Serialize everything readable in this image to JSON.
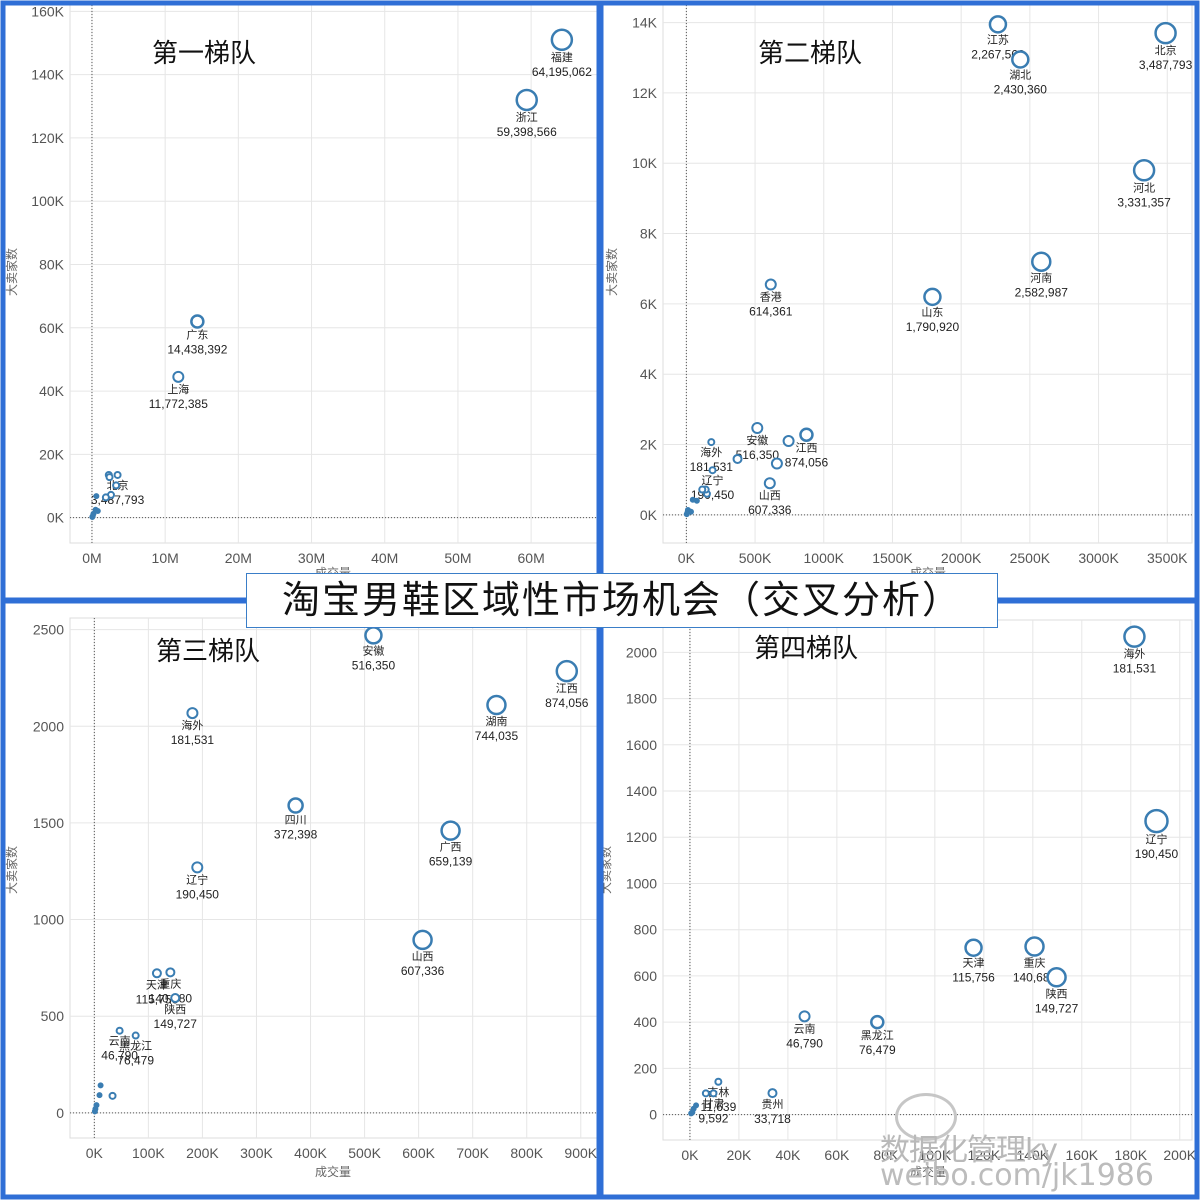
{
  "page_title": "淘宝男鞋区域性市场机会（交叉分析）",
  "watermark": {
    "line1": "数据化管理ky",
    "line2": "weibo.com/jk1986",
    "icon": "weibo-icon"
  },
  "colors": {
    "frame": "#2f6fd6",
    "point": "#3a7db2",
    "grid": "#e6e6e6",
    "axis_text": "#555555"
  },
  "chart_data": [
    {
      "type": "scatter",
      "title": "第一梯队",
      "xlabel": "成交量",
      "ylabel": "大卖家数",
      "x_unit": "M",
      "y_unit": "K",
      "xlim": [
        -3,
        69
      ],
      "ylim": [
        -8,
        162
      ],
      "x_ticks": [
        0,
        10,
        20,
        30,
        40,
        50,
        60
      ],
      "y_ticks": [
        0,
        20,
        40,
        60,
        80,
        100,
        120,
        140,
        160
      ],
      "x_tick_labels": [
        "0M",
        "10M",
        "20M",
        "30M",
        "40M",
        "50M",
        "60M"
      ],
      "y_tick_labels": [
        "0K",
        "20K",
        "40K",
        "60K",
        "80K",
        "100K",
        "120K",
        "140K",
        "160K"
      ],
      "points": [
        {
          "x": 64.2,
          "y": 151,
          "r": 10,
          "name": "福建",
          "value": "64,195,062"
        },
        {
          "x": 59.4,
          "y": 132,
          "r": 10,
          "name": "浙江",
          "value": "59,398,566"
        },
        {
          "x": 14.4,
          "y": 62,
          "r": 6,
          "name": "广东",
          "value": "14,438,392"
        },
        {
          "x": 11.8,
          "y": 44.5,
          "r": 5,
          "name": "上海",
          "value": "11,772,385"
        },
        {
          "x": 3.5,
          "y": 13.5,
          "r": 3,
          "name": "北京",
          "value": "3,487,793"
        },
        {
          "x": 2.3,
          "y": 13.5,
          "r": 3
        },
        {
          "x": 2.4,
          "y": 12.8,
          "r": 3
        },
        {
          "x": 3.3,
          "y": 10.2,
          "r": 3
        },
        {
          "x": 2.6,
          "y": 7.2,
          "r": 3
        },
        {
          "x": 1.9,
          "y": 6.4,
          "r": 3
        },
        {
          "x": 0.6,
          "y": 6.8,
          "r": 2
        },
        {
          "x": 0.5,
          "y": 2.5,
          "r": 2
        },
        {
          "x": 0.8,
          "y": 2.1,
          "r": 2
        },
        {
          "x": 0.2,
          "y": 1.2,
          "r": 2
        },
        {
          "x": 0.1,
          "y": 0.5,
          "r": 2
        },
        {
          "x": 0.05,
          "y": 0.2,
          "r": 2
        }
      ]
    },
    {
      "type": "scatter",
      "title": "第二梯队",
      "xlabel": "成交量",
      "ylabel": "大卖家数",
      "x_unit": "K",
      "y_unit": "K",
      "xlim": [
        -170,
        3680
      ],
      "ylim": [
        -0.8,
        14.5
      ],
      "x_ticks": [
        0,
        500,
        1000,
        1500,
        2000,
        2500,
        3000,
        3500
      ],
      "y_ticks": [
        0,
        2,
        4,
        6,
        8,
        10,
        12,
        14
      ],
      "x_tick_labels": [
        "0K",
        "500K",
        "1000K",
        "1500K",
        "2000K",
        "2500K",
        "3000K",
        "3500K"
      ],
      "y_tick_labels": [
        "0K",
        "2K",
        "4K",
        "6K",
        "8K",
        "10K",
        "12K",
        "14K"
      ],
      "points": [
        {
          "x": 2267.6,
          "y": 13.95,
          "r": 8,
          "name": "江苏",
          "value": "2,267,560"
        },
        {
          "x": 2430.4,
          "y": 12.95,
          "r": 8,
          "name": "湖北",
          "value": "2,430,360"
        },
        {
          "x": 3487.8,
          "y": 13.7,
          "r": 10,
          "name": "北京",
          "value": "3,487,793"
        },
        {
          "x": 3331.4,
          "y": 9.8,
          "r": 10,
          "name": "河北",
          "value": "3,331,357"
        },
        {
          "x": 2583.0,
          "y": 7.2,
          "r": 9,
          "name": "河南",
          "value": "2,582,987"
        },
        {
          "x": 1790.9,
          "y": 6.2,
          "r": 8,
          "name": "山东",
          "value": "1,790,920"
        },
        {
          "x": 614.4,
          "y": 6.55,
          "r": 5,
          "name": "香港",
          "value": "614,361"
        },
        {
          "x": 516.4,
          "y": 2.47,
          "r": 5,
          "name": "安徽",
          "value": "516,350"
        },
        {
          "x": 874.1,
          "y": 2.28,
          "r": 6,
          "name": "江西",
          "value": "874,056"
        },
        {
          "x": 744.0,
          "y": 2.1,
          "r": 5
        },
        {
          "x": 659.1,
          "y": 1.46,
          "r": 5
        },
        {
          "x": 607.3,
          "y": 0.9,
          "r": 5,
          "name": "山西",
          "value": "607,336"
        },
        {
          "x": 372.4,
          "y": 1.59,
          "r": 4
        },
        {
          "x": 181.5,
          "y": 2.07,
          "r": 3,
          "name": "海外",
          "value": "181,531"
        },
        {
          "x": 190.5,
          "y": 1.27,
          "r": 3,
          "name": "辽宁",
          "value": "190,450"
        },
        {
          "x": 149.7,
          "y": 0.6,
          "r": 3
        },
        {
          "x": 140.7,
          "y": 0.72,
          "r": 3
        },
        {
          "x": 115.8,
          "y": 0.72,
          "r": 3
        },
        {
          "x": 76.5,
          "y": 0.4,
          "r": 2
        },
        {
          "x": 46.8,
          "y": 0.43,
          "r": 2
        },
        {
          "x": 33.7,
          "y": 0.09,
          "r": 2
        },
        {
          "x": 11.6,
          "y": 0.14,
          "r": 2
        },
        {
          "x": 9.6,
          "y": 0.09,
          "r": 2
        },
        {
          "x": 3,
          "y": 0.02,
          "r": 2
        }
      ]
    },
    {
      "type": "scatter",
      "title": "第三梯队",
      "xlabel": "成交量",
      "ylabel": "大卖家数",
      "x_unit": "K",
      "y_unit": "",
      "xlim": [
        -45,
        930
      ],
      "ylim": [
        -130,
        2560
      ],
      "x_ticks": [
        0,
        100,
        200,
        300,
        400,
        500,
        600,
        700,
        800,
        900
      ],
      "y_ticks": [
        0,
        500,
        1000,
        1500,
        2000,
        2500
      ],
      "x_tick_labels": [
        "0K",
        "100K",
        "200K",
        "300K",
        "400K",
        "500K",
        "600K",
        "700K",
        "800K",
        "900K"
      ],
      "y_tick_labels": [
        "0",
        "500",
        "1000",
        "1500",
        "2000",
        "2500"
      ],
      "points": [
        {
          "x": 516.4,
          "y": 2470,
          "r": 8,
          "name": "安徽",
          "value": "516,350"
        },
        {
          "x": 874.1,
          "y": 2285,
          "r": 10,
          "name": "江西",
          "value": "874,056"
        },
        {
          "x": 744.0,
          "y": 2110,
          "r": 9,
          "name": "湖南",
          "value": "744,035"
        },
        {
          "x": 181.5,
          "y": 2068,
          "r": 5,
          "name": "海外",
          "value": "181,531"
        },
        {
          "x": 372.4,
          "y": 1590,
          "r": 7,
          "name": "四川",
          "value": "372,398"
        },
        {
          "x": 659.1,
          "y": 1460,
          "r": 9,
          "name": "广西",
          "value": "659,139"
        },
        {
          "x": 190.5,
          "y": 1270,
          "r": 5,
          "name": "辽宁",
          "value": "190,450"
        },
        {
          "x": 607.3,
          "y": 895,
          "r": 9,
          "name": "山西",
          "value": "607,336"
        },
        {
          "x": 115.8,
          "y": 722,
          "r": 4,
          "name": "天津",
          "value": "115,756"
        },
        {
          "x": 140.7,
          "y": 727,
          "r": 4,
          "name": "重庆",
          "value": "140,680"
        },
        {
          "x": 149.7,
          "y": 594,
          "r": 4,
          "name": "陕西",
          "value": "149,727"
        },
        {
          "x": 46.8,
          "y": 425,
          "r": 3,
          "name": "云南",
          "value": "46,790"
        },
        {
          "x": 76.5,
          "y": 400,
          "r": 3,
          "name": "黑龙江",
          "value": "76,479"
        },
        {
          "x": 33.7,
          "y": 88,
          "r": 3
        },
        {
          "x": 11.6,
          "y": 142,
          "r": 2
        },
        {
          "x": 9.6,
          "y": 92,
          "r": 2
        },
        {
          "x": 4,
          "y": 40,
          "r": 2
        },
        {
          "x": 2,
          "y": 20,
          "r": 2
        },
        {
          "x": 1,
          "y": 8,
          "r": 2
        }
      ]
    },
    {
      "type": "scatter",
      "title": "第四梯队",
      "xlabel": "成交量",
      "ylabel": "大卖家数",
      "x_unit": "K",
      "y_unit": "",
      "xlim": [
        -11,
        205
      ],
      "ylim": [
        -110,
        2140
      ],
      "x_ticks": [
        0,
        20,
        40,
        60,
        80,
        100,
        120,
        140,
        160,
        180,
        200
      ],
      "y_ticks": [
        0,
        200,
        400,
        600,
        800,
        1000,
        1200,
        1400,
        1600,
        1800,
        2000
      ],
      "x_tick_labels": [
        "0K",
        "20K",
        "40K",
        "60K",
        "80K",
        "100K",
        "120K",
        "140K",
        "160K",
        "180K",
        "200K"
      ],
      "y_tick_labels": [
        "0",
        "200",
        "400",
        "600",
        "800",
        "1000",
        "1200",
        "1400",
        "1600",
        "1800",
        "2000"
      ],
      "points": [
        {
          "x": 181.5,
          "y": 2068,
          "r": 10,
          "name": "海外",
          "value": "181,531"
        },
        {
          "x": 190.5,
          "y": 1270,
          "r": 11,
          "name": "辽宁",
          "value": "190,450"
        },
        {
          "x": 140.7,
          "y": 727,
          "r": 9,
          "name": "重庆",
          "value": "140,680"
        },
        {
          "x": 115.8,
          "y": 722,
          "r": 8,
          "name": "天津",
          "value": "115,756"
        },
        {
          "x": 149.7,
          "y": 594,
          "r": 9,
          "name": "陕西",
          "value": "149,727"
        },
        {
          "x": 76.5,
          "y": 400,
          "r": 6,
          "name": "黑龙江",
          "value": "76,479"
        },
        {
          "x": 46.8,
          "y": 425,
          "r": 5,
          "name": "云南",
          "value": "46,790"
        },
        {
          "x": 33.7,
          "y": 93,
          "r": 4,
          "name": "贵州",
          "value": "33,718"
        },
        {
          "x": 11.6,
          "y": 142,
          "r": 3,
          "name": "吉林",
          "value": "11,639"
        },
        {
          "x": 9.6,
          "y": 92,
          "r": 3,
          "name": "甘肃",
          "value": "9,592"
        },
        {
          "x": 6.5,
          "y": 92,
          "r": 3
        },
        {
          "x": 2.5,
          "y": 40,
          "r": 2
        },
        {
          "x": 1.5,
          "y": 25,
          "r": 2
        },
        {
          "x": 1,
          "y": 10,
          "r": 2
        },
        {
          "x": 0.5,
          "y": 5,
          "r": 2
        }
      ]
    }
  ]
}
